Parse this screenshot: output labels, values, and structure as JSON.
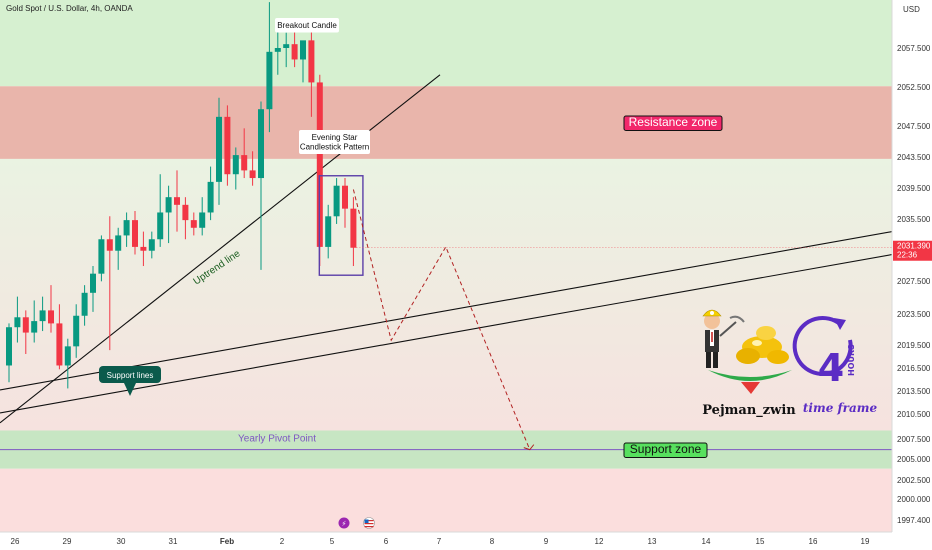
{
  "header": {
    "title": "Gold Spot / U.S. Dollar, 4h, OANDA",
    "currency": "USD"
  },
  "colors": {
    "bull": "#089981",
    "bear": "#f23645",
    "resistance_fill": "#e9b5ab",
    "support_fill": "#c7e6c3",
    "upper_green": "#d6f0d0",
    "lower_pink": "#fbdedd",
    "pivot": "#7e57c2",
    "box": "#5b3fa8",
    "dashed": "#b22222",
    "price_tag": "#f23645"
  },
  "price_axis": {
    "ticks": [
      "2057.500",
      "2052.500",
      "2047.500",
      "2043.500",
      "2039.500",
      "2035.500",
      "2031.390",
      "2027.500",
      "2023.500",
      "2019.500",
      "2016.500",
      "2013.500",
      "2010.500",
      "2007.500",
      "2005.000",
      "2002.500",
      "2000.000",
      "1997.400"
    ],
    "current_price": "2031.390",
    "countdown": "22:36"
  },
  "time_axis": {
    "ticks": [
      "26",
      "29",
      "30",
      "31",
      "Feb",
      "2",
      "5",
      "6",
      "7",
      "8",
      "9",
      "12",
      "13",
      "14",
      "15",
      "16",
      "19"
    ]
  },
  "chart_data": {
    "type": "candlestick",
    "title": "Gold Spot / U.S. Dollar, 4h, OANDA",
    "y_unit": "USD",
    "ylim": [
      1995.5,
      2064
    ],
    "grid": false,
    "candles": [
      {
        "o": 2016.0,
        "h": 2021.5,
        "l": 2013.8,
        "c": 2021.0
      },
      {
        "o": 2021.0,
        "h": 2025.0,
        "l": 2019.0,
        "c": 2022.3
      },
      {
        "o": 2022.3,
        "h": 2023.2,
        "l": 2017.5,
        "c": 2020.3
      },
      {
        "o": 2020.3,
        "h": 2024.5,
        "l": 2019.0,
        "c": 2021.8
      },
      {
        "o": 2021.8,
        "h": 2025.0,
        "l": 2020.5,
        "c": 2023.2
      },
      {
        "o": 2023.2,
        "h": 2026.5,
        "l": 2020.3,
        "c": 2021.5
      },
      {
        "o": 2021.5,
        "h": 2024.0,
        "l": 2015.5,
        "c": 2016.0
      },
      {
        "o": 2016.0,
        "h": 2019.5,
        "l": 2013.0,
        "c": 2018.5
      },
      {
        "o": 2018.5,
        "h": 2024.0,
        "l": 2017.0,
        "c": 2022.5
      },
      {
        "o": 2022.5,
        "h": 2026.5,
        "l": 2021.2,
        "c": 2025.5
      },
      {
        "o": 2025.5,
        "h": 2029.0,
        "l": 2023.0,
        "c": 2028.0
      },
      {
        "o": 2028.0,
        "h": 2033.0,
        "l": 2027.0,
        "c": 2032.5
      },
      {
        "o": 2032.5,
        "h": 2035.5,
        "l": 2018.0,
        "c": 2031.0
      },
      {
        "o": 2031.0,
        "h": 2034.0,
        "l": 2028.5,
        "c": 2033.0
      },
      {
        "o": 2033.0,
        "h": 2036.0,
        "l": 2031.5,
        "c": 2035.0
      },
      {
        "o": 2035.0,
        "h": 2036.2,
        "l": 2030.5,
        "c": 2031.5
      },
      {
        "o": 2031.5,
        "h": 2033.5,
        "l": 2029.0,
        "c": 2031.0
      },
      {
        "o": 2031.0,
        "h": 2033.5,
        "l": 2030.0,
        "c": 2032.5
      },
      {
        "o": 2032.5,
        "h": 2041.0,
        "l": 2031.5,
        "c": 2036.0
      },
      {
        "o": 2036.0,
        "h": 2039.5,
        "l": 2032.0,
        "c": 2038.0
      },
      {
        "o": 2038.0,
        "h": 2041.5,
        "l": 2033.5,
        "c": 2037.0
      },
      {
        "o": 2037.0,
        "h": 2038.0,
        "l": 2032.5,
        "c": 2035.0
      },
      {
        "o": 2035.0,
        "h": 2036.0,
        "l": 2033.0,
        "c": 2034.0
      },
      {
        "o": 2034.0,
        "h": 2038.0,
        "l": 2033.0,
        "c": 2036.0
      },
      {
        "o": 2036.0,
        "h": 2042.0,
        "l": 2035.0,
        "c": 2040.0
      },
      {
        "o": 2040.0,
        "h": 2051.0,
        "l": 2037.0,
        "c": 2048.5
      },
      {
        "o": 2048.5,
        "h": 2050.0,
        "l": 2039.5,
        "c": 2041.0
      },
      {
        "o": 2041.0,
        "h": 2044.5,
        "l": 2039.0,
        "c": 2043.5
      },
      {
        "o": 2043.5,
        "h": 2047.0,
        "l": 2040.5,
        "c": 2041.5
      },
      {
        "o": 2041.5,
        "h": 2044.0,
        "l": 2039.5,
        "c": 2040.5
      },
      {
        "o": 2040.5,
        "h": 2050.5,
        "l": 2028.5,
        "c": 2049.5
      },
      {
        "o": 2049.5,
        "h": 2063.5,
        "l": 2046.5,
        "c": 2057.0
      },
      {
        "o": 2057.0,
        "h": 2060.5,
        "l": 2054.0,
        "c": 2057.5
      },
      {
        "o": 2057.5,
        "h": 2059.5,
        "l": 2055.0,
        "c": 2058.0
      },
      {
        "o": 2058.0,
        "h": 2061.0,
        "l": 2055.0,
        "c": 2056.0
      },
      {
        "o": 2056.0,
        "h": 2058.0,
        "l": 2053.0,
        "c": 2058.5
      },
      {
        "o": 2058.5,
        "h": 2060.0,
        "l": 2048.5,
        "c": 2053.0
      },
      {
        "o": 2053.0,
        "h": 2054.0,
        "l": 2029.0,
        "c": 2031.5
      },
      {
        "o": 2031.5,
        "h": 2037.0,
        "l": 2030.0,
        "c": 2035.5
      },
      {
        "o": 2035.5,
        "h": 2040.5,
        "l": 2034.5,
        "c": 2039.5
      },
      {
        "o": 2039.5,
        "h": 2040.5,
        "l": 2034.0,
        "c": 2036.5
      },
      {
        "o": 2036.5,
        "h": 2038.0,
        "l": 2029.0,
        "c": 2031.39
      }
    ],
    "zones": {
      "resistance": {
        "label": "Resistance zone",
        "from": 2043.0,
        "to": 2052.5
      },
      "support": {
        "label": "Support zone",
        "from": 2002.5,
        "to": 2007.5
      },
      "pivot": {
        "label": "Yearly Pivot Point",
        "price": 2005.0
      }
    },
    "annotations": {
      "breakout": "Breakout Candle",
      "evening_star_1": "Evening Star",
      "evening_star_2": "Candlestick Pattern",
      "uptrend": "Uptrend line",
      "support_lines": "Support lines"
    },
    "projection_path": [
      {
        "bar": 41,
        "price": 2039.0
      },
      {
        "bar": 45.5,
        "price": 2019.3
      },
      {
        "bar": 52,
        "price": 2031.5
      },
      {
        "bar": 62,
        "price": 2005.0
      }
    ]
  },
  "brand": {
    "name": "Pejman_zwin",
    "badge_number": "4",
    "badge_word": "HOURS",
    "badge_sub": "time frame"
  }
}
